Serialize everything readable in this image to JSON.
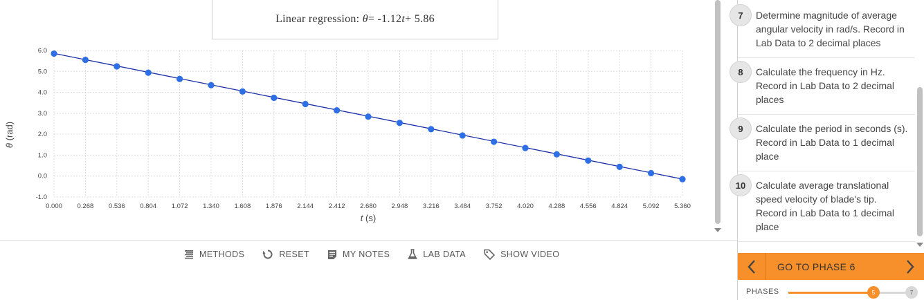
{
  "regression": {
    "prefix": "Linear regression: ",
    "var_y": "θ",
    "mid": " = -1.12",
    "var_x": "t",
    "suffix": " + 5.86"
  },
  "chart_data": {
    "type": "scatter",
    "x_ticks": [
      "0.000",
      "0.268",
      "0.536",
      "0.804",
      "1.072",
      "1.340",
      "1.608",
      "1.876",
      "2.144",
      "2.412",
      "2.680",
      "2.948",
      "3.216",
      "3.484",
      "3.752",
      "4.020",
      "4.288",
      "4.556",
      "4.824",
      "5.092",
      "5.360"
    ],
    "y_ticks": [
      "6.0",
      "5.0",
      "4.0",
      "3.0",
      "2.0",
      "1.0",
      "0.0",
      "-1.0"
    ],
    "xlabel_var": "t",
    "xlabel_unit": " (s)",
    "ylabel_var": "θ",
    "ylabel_unit": " (rad)",
    "xlim": [
      0,
      5.36
    ],
    "ylim": [
      -1.0,
      6.0
    ],
    "grid": true,
    "series": [
      {
        "x": [
          0.0,
          0.268,
          0.536,
          0.804,
          1.072,
          1.34,
          1.608,
          1.876,
          2.144,
          2.412,
          2.68,
          2.948,
          3.216,
          3.484,
          3.752,
          4.02,
          4.288,
          4.556,
          4.824,
          5.092,
          5.36
        ],
        "y": [
          5.85,
          5.55,
          5.24,
          4.94,
          4.64,
          4.34,
          4.04,
          3.74,
          3.44,
          3.14,
          2.84,
          2.54,
          2.24,
          1.94,
          1.64,
          1.34,
          1.04,
          0.74,
          0.44,
          0.14,
          -0.15
        ],
        "color": "#2f6fe6"
      }
    ],
    "fit": {
      "slope": -1.12,
      "intercept": 5.86,
      "color": "#1b2fa8"
    }
  },
  "toolbar": {
    "methods": "METHODS",
    "reset": "RESET",
    "notes": "MY NOTES",
    "lab_data": "LAB DATA",
    "video": "SHOW VIDEO"
  },
  "steps": [
    {
      "num": "7",
      "text": "Determine magnitude of average angular velocity in rad/s. Record in Lab Data to 2 decimal places"
    },
    {
      "num": "8",
      "text": "Calculate the frequency in Hz. Record in Lab Data to 2 decimal places"
    },
    {
      "num": "9",
      "text": "Calculate the period in seconds (s). Record in Lab Data to 1 decimal place"
    },
    {
      "num": "10",
      "text": "Calculate average translational speed velocity of blade's tip. Record in Lab Data to 1 decimal place"
    }
  ],
  "phase_nav": {
    "go_label": "GO TO PHASE 6",
    "phases_label": "PHASES",
    "current": "5",
    "max": "7",
    "progress_fraction": 0.67
  },
  "colors": {
    "accent": "#f7902b",
    "point": "#2f6fe6",
    "fit_line": "#1b2fa8"
  }
}
